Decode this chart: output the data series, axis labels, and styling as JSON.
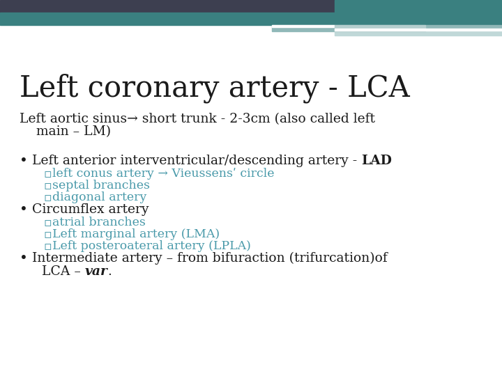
{
  "title": "Left coronary artery - LCA",
  "title_fontsize": 30,
  "title_color": "#1a1a1a",
  "bg_color": "#ffffff",
  "header_dark_color": "#3d3f50",
  "header_teal_color": "#3a8080",
  "header_light_color": "#90b8b8",
  "header_lighter_color": "#c0d8d8",
  "subtitle_line1": "Left aortic sinus→ short trunk - 2-3cm (also called left",
  "subtitle_line2": "    main – LM)",
  "subtitle_fontsize": 13.5,
  "subtitle_color": "#1a1a1a",
  "bullet_color": "#1a1a1a",
  "sub_bullet_color": "#4a9aaa",
  "bullet_fontsize": 13.5,
  "sub_bullet_fontsize": 12.5,
  "bullet1_normal": "Left anterior interventricular/descending artery - ",
  "bullet1_bold": "LAD",
  "bullet1_subs": [
    "left conus artery → Vieussensʹ circle",
    "septal branches",
    "diagonal artery"
  ],
  "bullet2_normal": "Circumflex artery",
  "bullet2_subs": [
    "atrial branches",
    "Left marginal artery (LMA)",
    "Left posteroateral artery (LPLA)"
  ],
  "bullet3_normal": "Intermediate artery – from bifuraction (trifurcation)of",
  "bullet3_line2_normal": "LCA – ",
  "bullet3_italic": "var",
  "bullet3_after": "."
}
